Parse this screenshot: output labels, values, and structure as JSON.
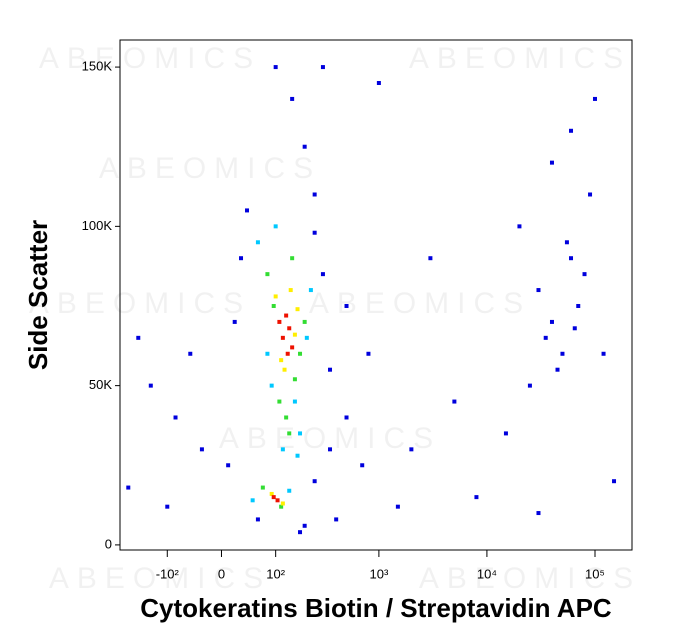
{
  "chart_data": {
    "type": "scatter",
    "watermark": "ABEOMICS",
    "x_label": "Cytokeratins Biotin / Streptavidin APC",
    "y_label": "Side Scatter",
    "xscale": "biexponential",
    "xlim": [
      -300,
      220000
    ],
    "ylim": [
      -1600,
      158500
    ],
    "xticks": [
      {
        "value": -100,
        "label": "-10²"
      },
      0,
      {
        "value": 100,
        "label": "10²"
      },
      {
        "value": 1000,
        "label": "10³"
      },
      {
        "value": 10000,
        "label": "10⁴"
      },
      {
        "value": 100000,
        "label": "10⁵"
      }
    ],
    "yticks": [
      0,
      {
        "value": 50000,
        "label": "50K"
      },
      {
        "value": 100000,
        "label": "100K"
      },
      {
        "value": 150000,
        "label": "150K"
      }
    ],
    "series": [
      {
        "color": "#0000dd",
        "x": [
          40,
          250,
          300,
          20,
          350,
          -50,
          -150,
          -200,
          500,
          800,
          2000,
          5000,
          3000,
          150,
          300,
          200,
          20000,
          30000,
          40000,
          50000,
          60000,
          70000,
          45000,
          35000,
          80000,
          55000,
          25000,
          65000,
          90000,
          40000,
          60000,
          100000,
          30000,
          150000,
          8000,
          1500,
          400,
          -100,
          -250,
          250,
          60,
          200,
          10,
          -30,
          350,
          100,
          1000,
          250,
          30,
          500,
          -80,
          120000,
          15000,
          700,
          180
        ],
        "y": [
          105000,
          110000,
          85000,
          70000,
          55000,
          60000,
          50000,
          65000,
          40000,
          60000,
          30000,
          45000,
          90000,
          140000,
          150000,
          125000,
          100000,
          80000,
          70000,
          60000,
          90000,
          75000,
          55000,
          65000,
          85000,
          95000,
          50000,
          68000,
          110000,
          120000,
          130000,
          140000,
          10000,
          20000,
          15000,
          12000,
          8000,
          12000,
          18000,
          20000,
          8000,
          6000,
          25000,
          30000,
          30000,
          150000,
          145000,
          98000,
          90000,
          75000,
          40000,
          60000,
          35000,
          25000,
          4000
        ]
      },
      {
        "color": "#00c8ff",
        "x": [
          60,
          210,
          90,
          230,
          120,
          180,
          100,
          170,
          50,
          140,
          160,
          80
        ],
        "y": [
          95000,
          65000,
          50000,
          80000,
          30000,
          35000,
          100000,
          28000,
          14000,
          17000,
          45000,
          60000
        ]
      },
      {
        "color": "#33dd33",
        "x": [
          80,
          180,
          110,
          150,
          200,
          130,
          95,
          160,
          70,
          115,
          140
        ],
        "y": [
          85000,
          60000,
          45000,
          90000,
          70000,
          40000,
          75000,
          52000,
          18000,
          12000,
          35000
        ]
      },
      {
        "color": "#ffee00",
        "x": [
          100,
          160,
          125,
          145,
          115,
          170,
          90,
          120
        ],
        "y": [
          78000,
          66000,
          55000,
          80000,
          58000,
          74000,
          16000,
          13000
        ]
      },
      {
        "color": "#ee1100",
        "x": [
          120,
          140,
          130,
          150,
          110,
          135,
          95,
          105
        ],
        "y": [
          65000,
          68000,
          72000,
          62000,
          70000,
          60000,
          15000,
          14000
        ]
      }
    ]
  }
}
